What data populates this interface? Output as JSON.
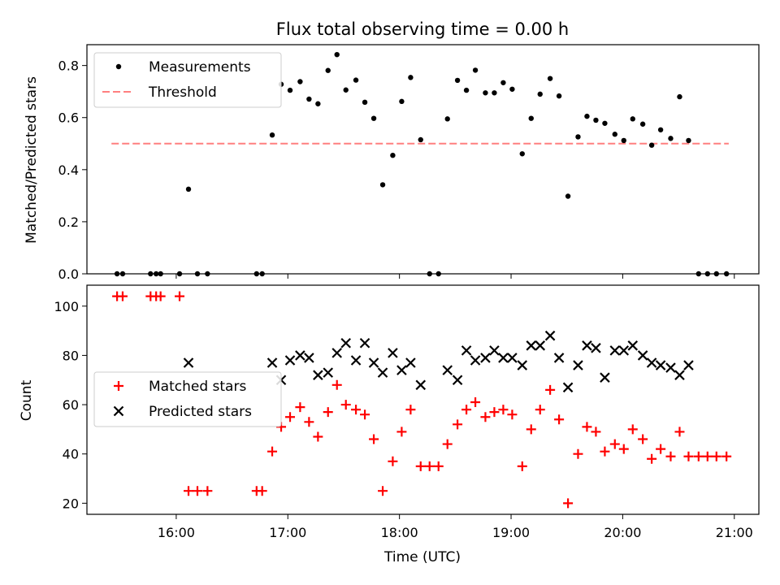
{
  "chart_data": [
    {
      "type": "scatter",
      "title": "Flux total observing time = 0.00 h",
      "xlabel": "",
      "ylabel": "Matched/Predicted stars",
      "ylim": [
        0,
        0.88
      ],
      "yticks": [
        0.0,
        0.2,
        0.4,
        0.6,
        0.8
      ],
      "ytick_labels": [
        "0.0",
        "0.2",
        "0.4",
        "0.6",
        "0.8"
      ],
      "legend": "upper-left",
      "series": [
        {
          "name": "Measurements",
          "marker": "dot",
          "color": "#000000",
          "x": [
            15.47,
            15.52,
            15.77,
            15.82,
            15.86,
            16.03,
            16.11,
            16.19,
            16.28,
            16.72,
            16.77,
            16.86,
            16.94,
            17.02,
            17.11,
            17.19,
            17.27,
            17.36,
            17.44,
            17.52,
            17.61,
            17.69,
            17.77,
            17.85,
            17.94,
            18.02,
            18.1,
            18.19,
            18.27,
            18.35,
            18.43,
            18.52,
            18.6,
            18.68,
            18.77,
            18.85,
            18.93,
            19.01,
            19.1,
            19.18,
            19.26,
            19.35,
            19.43,
            19.51,
            19.6,
            19.68,
            19.76,
            19.84,
            19.93,
            20.01,
            20.09,
            20.18,
            20.26,
            20.34,
            20.43,
            20.51,
            20.59,
            20.68,
            20.76,
            20.84,
            20.93
          ],
          "y": [
            0.0,
            0.0,
            0.0,
            0.0,
            0.0,
            0.0,
            0.325,
            0.0,
            0.0,
            0.0,
            0.0,
            0.533,
            0.728,
            0.705,
            0.738,
            0.671,
            0.653,
            0.781,
            0.842,
            0.706,
            0.744,
            0.659,
            0.597,
            0.342,
            0.455,
            0.662,
            0.754,
            0.515,
            0.0,
            0.0,
            0.595,
            0.743,
            0.705,
            0.782,
            0.695,
            0.695,
            0.734,
            0.709,
            0.461,
            0.597,
            0.69,
            0.75,
            0.683,
            0.298,
            0.526,
            0.605,
            0.59,
            0.578,
            0.536,
            0.512,
            0.595,
            0.575,
            0.494,
            0.553,
            0.52,
            0.68,
            0.512,
            0.0,
            0.0,
            0.0,
            0.0
          ]
        },
        {
          "name": "Threshold",
          "marker": "dashed-line",
          "color": "#ff7f7f",
          "x": [
            15.42,
            20.95
          ],
          "y": [
            0.5,
            0.5
          ]
        }
      ]
    },
    {
      "type": "scatter",
      "title": "",
      "xlabel": "Time (UTC)",
      "ylabel": "Count",
      "xlim": [
        15.2,
        21.22
      ],
      "xticks": [
        16,
        17,
        18,
        19,
        20,
        21
      ],
      "xtick_labels": [
        "16:00",
        "17:00",
        "18:00",
        "19:00",
        "20:00",
        "21:00"
      ],
      "ylim": [
        15.5,
        108.5
      ],
      "yticks": [
        20,
        40,
        60,
        80,
        100
      ],
      "ytick_labels": [
        "20",
        "40",
        "60",
        "80",
        "100"
      ],
      "legend": "center-left",
      "series": [
        {
          "name": "Matched stars",
          "marker": "plus",
          "color": "#ff0000",
          "x": [
            15.47,
            15.52,
            15.77,
            15.82,
            15.86,
            16.03,
            16.11,
            16.19,
            16.28,
            16.72,
            16.77,
            16.86,
            16.94,
            17.02,
            17.11,
            17.19,
            17.27,
            17.36,
            17.44,
            17.52,
            17.61,
            17.69,
            17.77,
            17.85,
            17.94,
            18.02,
            18.1,
            18.19,
            18.27,
            18.35,
            18.43,
            18.52,
            18.6,
            18.68,
            18.77,
            18.85,
            18.93,
            19.01,
            19.1,
            19.18,
            19.26,
            19.35,
            19.43,
            19.51,
            19.6,
            19.68,
            19.76,
            19.84,
            19.93,
            20.01,
            20.09,
            20.18,
            20.26,
            20.34,
            20.43,
            20.51,
            20.59,
            20.68,
            20.76,
            20.84,
            20.93
          ],
          "y": [
            104,
            104,
            104,
            104,
            104,
            104,
            25,
            25,
            25,
            25,
            25,
            41,
            51,
            55,
            59,
            53,
            47,
            57,
            68,
            60,
            58,
            56,
            46,
            25,
            37,
            49,
            58,
            35,
            35,
            35,
            44,
            52,
            58,
            61,
            55,
            57,
            58,
            56,
            35,
            50,
            58,
            66,
            54,
            20,
            40,
            51,
            49,
            41,
            44,
            42,
            50,
            46,
            38,
            42,
            39,
            49,
            39,
            39,
            39,
            39,
            39
          ]
        },
        {
          "name": "Predicted stars",
          "marker": "x",
          "color": "#000000",
          "x": [
            16.11,
            16.86,
            16.94,
            17.02,
            17.11,
            17.19,
            17.27,
            17.36,
            17.44,
            17.52,
            17.61,
            17.69,
            17.77,
            17.85,
            17.94,
            18.02,
            18.1,
            18.19,
            18.43,
            18.52,
            18.6,
            18.68,
            18.77,
            18.85,
            18.93,
            19.01,
            19.1,
            19.18,
            19.26,
            19.35,
            19.43,
            19.51,
            19.6,
            19.68,
            19.76,
            19.84,
            19.93,
            20.01,
            20.09,
            20.18,
            20.26,
            20.34,
            20.43,
            20.51,
            20.59
          ],
          "y": [
            77,
            77,
            70,
            78,
            80,
            79,
            72,
            73,
            81,
            85,
            78,
            85,
            77,
            73,
            81,
            74,
            77,
            68,
            74,
            70,
            82,
            78,
            79,
            82,
            79,
            79,
            76,
            84,
            84,
            88,
            79,
            67,
            76,
            84,
            83,
            71,
            82,
            82,
            84,
            80,
            77,
            76,
            75,
            72,
            76
          ]
        }
      ]
    }
  ]
}
